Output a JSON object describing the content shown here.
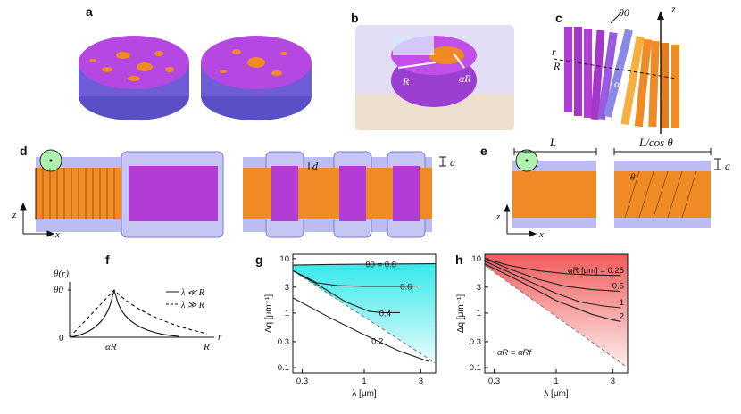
{
  "panel_labels": {
    "a": "a",
    "b": "b",
    "c": "c",
    "d": "d",
    "e": "e",
    "f": "f",
    "g": "g",
    "h": "h"
  },
  "panel_b": {
    "R": "R",
    "alphaR": "αR"
  },
  "panel_c": {
    "theta0": "θ0",
    "z": "z",
    "r": "r",
    "R": "R",
    "alphaR": "αR"
  },
  "panel_d": {
    "a": "a",
    "d": "d",
    "z": "z",
    "x": "x"
  },
  "panel_e": {
    "L": "L",
    "L_cos": "L/cos θ",
    "a": "a",
    "theta": "θ",
    "z": "z",
    "x": "x"
  },
  "panel_f": {
    "ylabel": "θ(r)",
    "y_tick": "θ0",
    "zero": "0",
    "xlabel": "r",
    "x_ticks": [
      "αR",
      "R"
    ],
    "legend": [
      "λ ≪ R",
      "λ ≫ R"
    ]
  },
  "colors": {
    "orange": "#f08a24",
    "magenta": "#b33cd6",
    "violet": "#8a8ae6",
    "cyan": "#3fe6e6",
    "red": "#f26a6a"
  },
  "chart_data": [
    {
      "type": "line",
      "panel": "g",
      "xlabel": "λ [μm]",
      "ylabel": "Δq [μm⁻¹]",
      "xscale": "log",
      "yscale": "log",
      "xlim": [
        0.25,
        4.0
      ],
      "ylim": [
        0.08,
        12
      ],
      "x_ticks": [
        0.3,
        1,
        3
      ],
      "y_ticks": [
        0.1,
        0.3,
        1,
        3,
        10
      ],
      "x_tick_labels": [
        "0.3",
        "1",
        "3"
      ],
      "y_tick_labels": [
        "0.1",
        "0.3",
        "1",
        "3",
        "10"
      ],
      "legend_prefix": "θ0 = ",
      "series": [
        {
          "name": "0.8",
          "label": "θ0 = 0.8",
          "x": [
            0.25,
            0.5,
            1,
            2,
            4
          ],
          "y": [
            7.6,
            7.8,
            7.9,
            8.0,
            8.05
          ]
        },
        {
          "name": "0.6",
          "label": "0.6",
          "x": [
            0.25,
            0.4,
            0.6,
            1,
            2,
            3
          ],
          "y": [
            6.0,
            3.6,
            3.2,
            3.1,
            3.1,
            3.15
          ]
        },
        {
          "name": "0.4",
          "label": "0.4",
          "x": [
            0.25,
            0.4,
            0.7,
            1.1,
            1.4,
            2
          ],
          "y": [
            6.0,
            3.4,
            1.6,
            1.08,
            1.02,
            1.02
          ]
        },
        {
          "name": "0.2",
          "label": "0.2",
          "x": [
            0.25,
            0.5,
            1,
            2,
            3.5
          ],
          "y": [
            1.9,
            0.85,
            0.4,
            0.2,
            0.13
          ]
        }
      ],
      "asymptote": {
        "x": [
          0.25,
          4.0
        ],
        "y": [
          6.0,
          0.12
        ]
      }
    },
    {
      "type": "line",
      "panel": "h",
      "xlabel": "λ [μm]",
      "ylabel": "Δq [μm⁻¹]",
      "xscale": "log",
      "yscale": "log",
      "xlim": [
        0.25,
        4.0
      ],
      "ylim": [
        0.08,
        12
      ],
      "x_ticks": [
        0.3,
        1,
        3
      ],
      "y_ticks": [
        0.1,
        0.3,
        1,
        3,
        10
      ],
      "x_tick_labels": [
        "0.3",
        "1",
        "3"
      ],
      "y_tick_labels": [
        "0.1",
        "0.3",
        "1",
        "3",
        "10"
      ],
      "annotation": "αR = αRf",
      "series": [
        {
          "name": "0.25",
          "label": "αR [μm] = 0.25",
          "x": [
            0.25,
            0.4,
            0.7,
            1.2,
            2,
            3.5
          ],
          "y": [
            10,
            7.5,
            6.0,
            5.3,
            5.0,
            4.9
          ]
        },
        {
          "name": "0.5",
          "label": "0.5",
          "x": [
            0.25,
            0.4,
            0.7,
            1.2,
            2,
            3.5
          ],
          "y": [
            10,
            6.5,
            4.2,
            3.1,
            2.7,
            2.5
          ]
        },
        {
          "name": "1",
          "label": "1",
          "x": [
            0.25,
            0.5,
            1,
            1.6,
            2.5,
            3.5
          ],
          "y": [
            9,
            4.5,
            2.3,
            1.6,
            1.35,
            1.25
          ]
        },
        {
          "name": "2",
          "label": "2",
          "x": [
            0.25,
            0.5,
            1,
            2,
            3,
            3.5
          ],
          "y": [
            8,
            3.8,
            1.7,
            0.95,
            0.75,
            0.7
          ]
        }
      ],
      "asymptote": {
        "x": [
          0.25,
          4.0
        ],
        "y": [
          7.5,
          0.1
        ]
      }
    }
  ]
}
